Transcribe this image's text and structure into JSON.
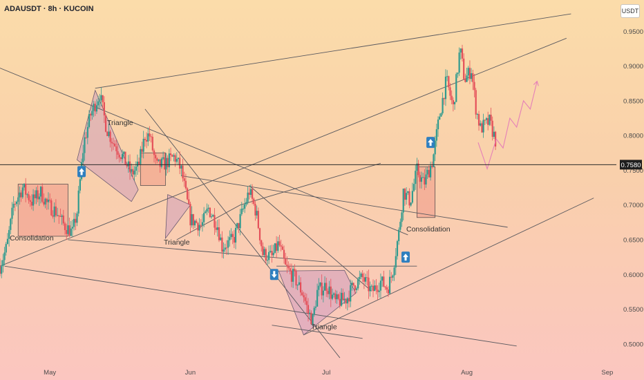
{
  "header": {
    "symbol_title": "ADAUSDT · 8h · KUCOIN",
    "currency_label": "USDT"
  },
  "colors": {
    "up": "#2f9a8e",
    "down": "#e44f59",
    "trendline": "#58585e",
    "pattern_fill": "rgba(176,120,200,0.30)",
    "box_fill": "rgba(235,100,100,0.28)",
    "projection": "#e57fb8",
    "price_line": "#2a2a2a",
    "signal_marker": "#2f7fbf"
  },
  "chart_data": {
    "type": "candlestick",
    "title": "ADAUSDT · 8h · KUCOIN",
    "y_axis": {
      "ticks": [
        "0.9500",
        "0.9000",
        "0.8500",
        "0.8000",
        "0.7500",
        "0.7000",
        "0.6500",
        "0.6000",
        "0.5500",
        "0.5000"
      ],
      "tick_values": [
        0.95,
        0.9,
        0.85,
        0.8,
        0.75,
        0.7,
        0.65,
        0.6,
        0.55,
        0.5
      ],
      "range": [
        0.47,
        0.995
      ]
    },
    "x_axis": {
      "ticks": [
        "May",
        "Jun",
        "Jul",
        "Aug",
        "Sep"
      ],
      "tick_days": [
        0,
        31,
        61,
        92,
        123
      ],
      "range_days": [
        -11,
        125
      ]
    },
    "current_price": {
      "value": 0.758,
      "label": "0.7580"
    },
    "price_path": [
      [
        -11.0,
        0.612
      ],
      [
        -9.5,
        0.64
      ],
      [
        -8.0,
        0.7
      ],
      [
        -6.0,
        0.725
      ],
      [
        -4.0,
        0.705
      ],
      [
        -2.0,
        0.718
      ],
      [
        -0.5,
        0.7
      ],
      [
        1.5,
        0.69
      ],
      [
        3.0,
        0.672
      ],
      [
        5.0,
        0.66
      ],
      [
        6.0,
        0.69
      ],
      [
        7.5,
        0.79
      ],
      [
        9.0,
        0.83
      ],
      [
        11.0,
        0.86
      ],
      [
        12.5,
        0.81
      ],
      [
        14.0,
        0.79
      ],
      [
        16.0,
        0.77
      ],
      [
        18.0,
        0.745
      ],
      [
        19.5,
        0.755
      ],
      [
        21.0,
        0.8
      ],
      [
        22.0,
        0.8
      ],
      [
        23.5,
        0.755
      ],
      [
        25.5,
        0.76
      ],
      [
        27.5,
        0.77
      ],
      [
        29.0,
        0.75
      ],
      [
        31.0,
        0.68
      ],
      [
        33.5,
        0.67
      ],
      [
        35.0,
        0.695
      ],
      [
        37.0,
        0.67
      ],
      [
        38.0,
        0.64
      ],
      [
        40.5,
        0.65
      ],
      [
        42.5,
        0.69
      ],
      [
        44.0,
        0.72
      ],
      [
        45.5,
        0.69
      ],
      [
        47.0,
        0.63
      ],
      [
        49.0,
        0.625
      ],
      [
        50.5,
        0.645
      ],
      [
        52.0,
        0.61
      ],
      [
        54.0,
        0.595
      ],
      [
        56.0,
        0.57
      ],
      [
        57.0,
        0.545
      ],
      [
        58.0,
        0.535
      ],
      [
        59.0,
        0.575
      ],
      [
        61.0,
        0.585
      ],
      [
        63.0,
        0.56
      ],
      [
        65.5,
        0.565
      ],
      [
        67.0,
        0.585
      ],
      [
        69.0,
        0.595
      ],
      [
        71.0,
        0.575
      ],
      [
        73.0,
        0.59
      ],
      [
        74.5,
        0.58
      ],
      [
        75.5,
        0.6
      ],
      [
        77.0,
        0.66
      ],
      [
        78.0,
        0.72
      ],
      [
        79.5,
        0.705
      ],
      [
        81.0,
        0.75
      ],
      [
        82.5,
        0.73
      ],
      [
        84.5,
        0.765
      ],
      [
        86.0,
        0.83
      ],
      [
        87.5,
        0.88
      ],
      [
        89.0,
        0.84
      ],
      [
        90.5,
        0.925
      ],
      [
        91.5,
        0.88
      ],
      [
        93.0,
        0.895
      ],
      [
        94.0,
        0.84
      ],
      [
        95.0,
        0.81
      ],
      [
        97.0,
        0.82
      ],
      [
        98.5,
        0.79
      ]
    ],
    "patterns": [
      {
        "kind": "box",
        "label": "Consolidation",
        "x": [
          -7,
          4
        ],
        "y": [
          0.655,
          0.73
        ],
        "label_at": [
          -4,
          0.649
        ]
      },
      {
        "kind": "polygon",
        "label": "Triangle",
        "points": [
          [
            6.0,
            0.765
          ],
          [
            10.0,
            0.865
          ],
          [
            19.5,
            0.722
          ],
          [
            18.0,
            0.705
          ]
        ],
        "label_at": [
          15.5,
          0.815
        ]
      },
      {
        "kind": "box",
        "label": "",
        "x": [
          20.0,
          25.5
        ],
        "y": [
          0.728,
          0.775
        ]
      },
      {
        "kind": "polygon",
        "label": "Triangle",
        "points": [
          [
            26.0,
            0.715
          ],
          [
            31.0,
            0.7
          ],
          [
            25.5,
            0.652
          ]
        ],
        "label_at": [
          28.0,
          0.643
        ]
      },
      {
        "kind": "polygon",
        "label": "Triangle",
        "points": [
          [
            50.5,
            0.605
          ],
          [
            65.0,
            0.606
          ],
          [
            67.5,
            0.573
          ],
          [
            56.0,
            0.513
          ]
        ],
        "label_at": [
          60.5,
          0.521
        ]
      },
      {
        "kind": "box",
        "label": "Consolidation",
        "x": [
          81.0,
          85.0
        ],
        "y": [
          0.682,
          0.755
        ],
        "label_at": [
          83.5,
          0.662
        ]
      }
    ],
    "signals": [
      {
        "dir": "up",
        "x": 7.0,
        "y": 0.748
      },
      {
        "dir": "down",
        "x": 49.5,
        "y": 0.6
      },
      {
        "dir": "up",
        "x": 78.5,
        "y": 0.625
      },
      {
        "dir": "up",
        "x": 84.0,
        "y": 0.79
      }
    ],
    "projection": [
      [
        94.5,
        0.79
      ],
      [
        96.5,
        0.752
      ],
      [
        98.5,
        0.795
      ],
      [
        100.0,
        0.782
      ],
      [
        101.5,
        0.825
      ],
      [
        103.0,
        0.812
      ],
      [
        104.5,
        0.85
      ],
      [
        106.0,
        0.838
      ],
      [
        107.5,
        0.878
      ]
    ]
  }
}
